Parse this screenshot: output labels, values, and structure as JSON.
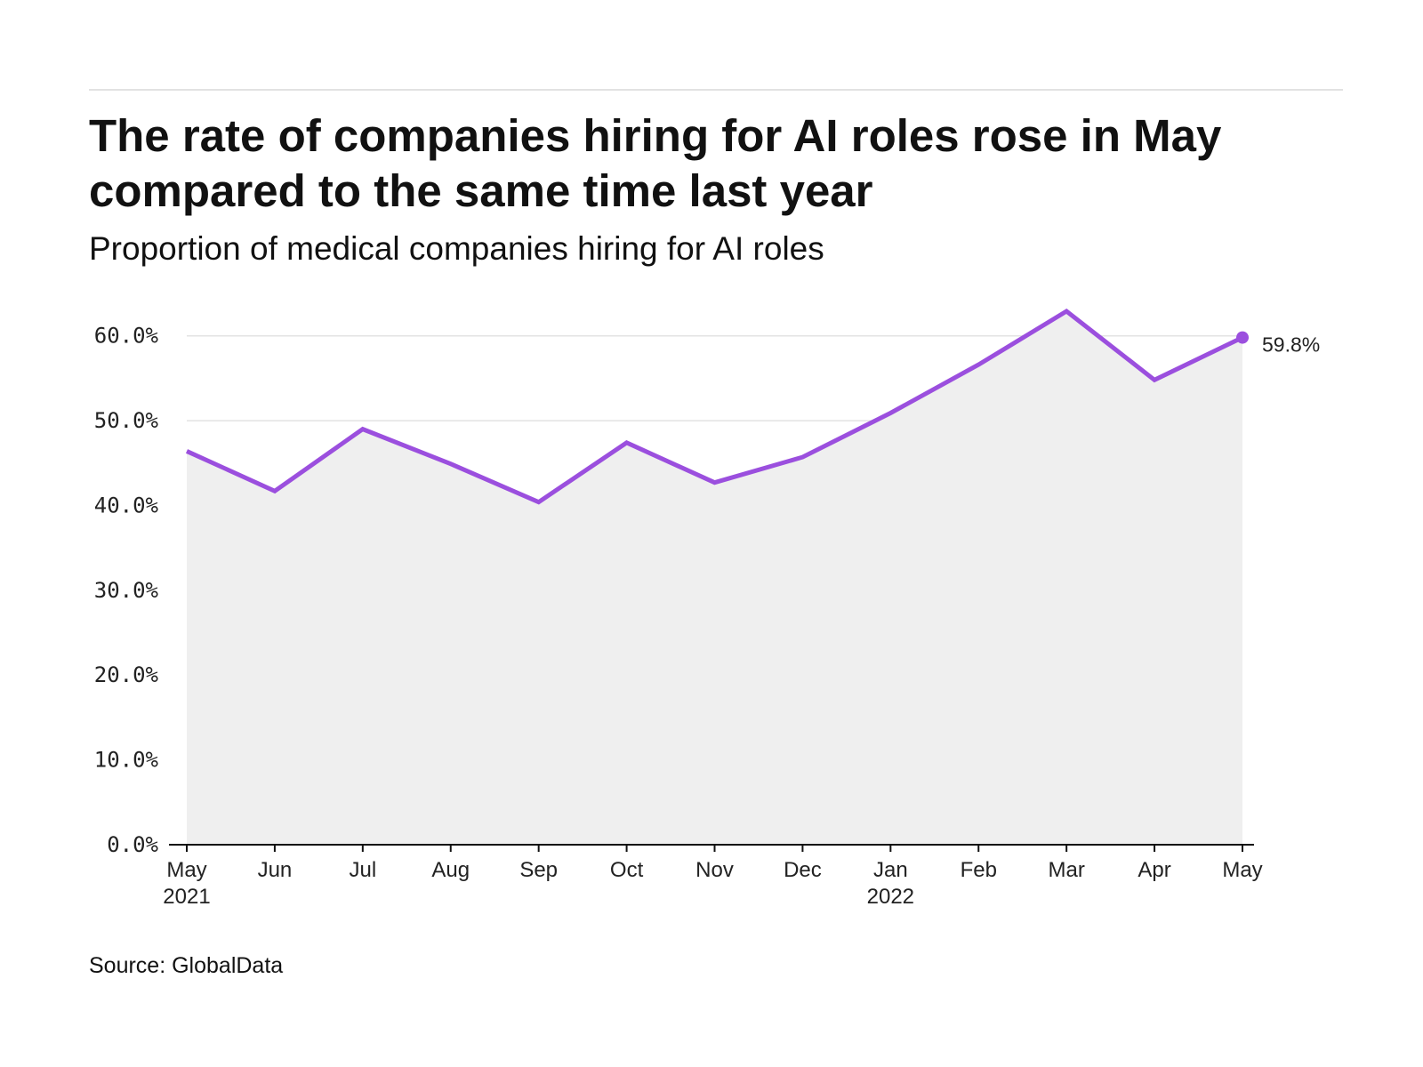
{
  "header": {
    "title": "The rate of companies hiring for AI roles rose in May compared to the same time last year",
    "subtitle": "Proportion of medical companies hiring for AI roles"
  },
  "footer": {
    "source": "Source: GlobalData"
  },
  "colors": {
    "line": "#9b4fde",
    "area": "#efefef",
    "grid": "#e3e3e3",
    "axis": "#111111"
  },
  "chart_data": {
    "type": "area",
    "title": "The rate of companies hiring for AI roles rose in May compared to the same time last year",
    "subtitle": "Proportion of medical companies hiring for AI roles",
    "categories": [
      "May",
      "Jun",
      "Jul",
      "Aug",
      "Sep",
      "Oct",
      "Nov",
      "Dec",
      "Jan",
      "Feb",
      "Mar",
      "Apr",
      "May"
    ],
    "category_sublabels": [
      "2021",
      "",
      "",
      "",
      "",
      "",
      "",
      "",
      "2022",
      "",
      "",
      "",
      ""
    ],
    "series": [
      {
        "name": "Proportion of medical companies hiring for AI roles",
        "values": [
          46.4,
          41.7,
          49.0,
          44.9,
          40.4,
          47.4,
          42.7,
          45.7,
          50.9,
          56.6,
          62.9,
          54.8,
          59.8
        ]
      }
    ],
    "ylim": [
      0,
      65
    ],
    "yticks": [
      0,
      10,
      20,
      30,
      40,
      50,
      60
    ],
    "ytick_labels": [
      "0.0%",
      "10.0%",
      "20.0%",
      "30.0%",
      "40.0%",
      "50.0%",
      "60.0%"
    ],
    "end_label": "59.8%",
    "xlabel": "",
    "ylabel": "",
    "grid": true,
    "source": "Source: GlobalData"
  }
}
